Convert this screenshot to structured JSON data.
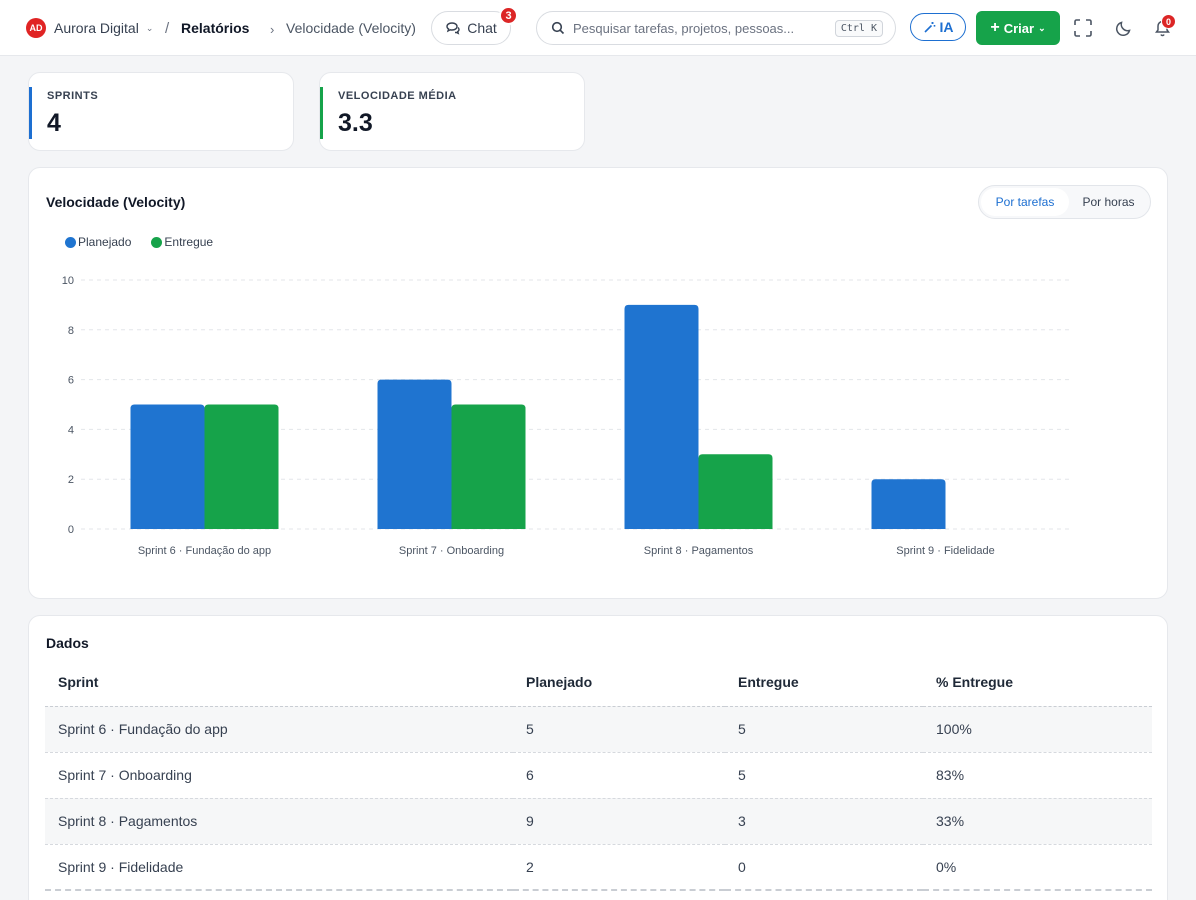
{
  "topbar": {
    "org_initials": "AD",
    "org_name": "Aurora Digital",
    "breadcrumb_separator": "/",
    "breadcrumb_section": "Relatórios",
    "breadcrumb_page": "Velocidade (Velocity)",
    "chat_label": "Chat",
    "chat_badge": "3",
    "search_placeholder": "Pesquisar tarefas, projetos, pessoas...",
    "search_shortcut": "Ctrl K",
    "ai_label": "IA",
    "create_label": "Criar",
    "notifications_badge": "0"
  },
  "stats": [
    {
      "label": "SPRINTS",
      "value": "4",
      "color": "#1d6fd1"
    },
    {
      "label": "VELOCIDADE MÉDIA",
      "value": "3.3",
      "color": "#16a34a"
    }
  ],
  "chart_section": {
    "title": "Velocidade (Velocity)",
    "toggle_active": "Por tarefas",
    "toggle_other": "Por horas"
  },
  "chart_data": {
    "type": "bar",
    "categories": [
      "Sprint 6 · Fundação do app",
      "Sprint 7 · Onboarding",
      "Sprint 8 · Pagamentos",
      "Sprint 9 · Fidelidade"
    ],
    "series": [
      {
        "name": "Planejado",
        "values": [
          5,
          6,
          9,
          2
        ],
        "color": "#1f74d0"
      },
      {
        "name": "Entregue",
        "values": [
          5,
          5,
          3,
          0
        ],
        "color": "#16a34a"
      }
    ],
    "ylim": [
      0,
      10
    ],
    "yticks": [
      0,
      2,
      4,
      6,
      8,
      10
    ],
    "grid": true,
    "legend": "top-left"
  },
  "table": {
    "title": "Dados",
    "columns": [
      "Sprint",
      "Planejado",
      "Entregue",
      "% Entregue"
    ],
    "rows": [
      [
        "Sprint 6 · Fundação do app",
        "5",
        "5",
        "100%"
      ],
      [
        "Sprint 7 · Onboarding",
        "6",
        "5",
        "83%"
      ],
      [
        "Sprint 8 · Pagamentos",
        "9",
        "3",
        "33%"
      ],
      [
        "Sprint 9 · Fidelidade",
        "2",
        "0",
        "0%"
      ]
    ]
  }
}
